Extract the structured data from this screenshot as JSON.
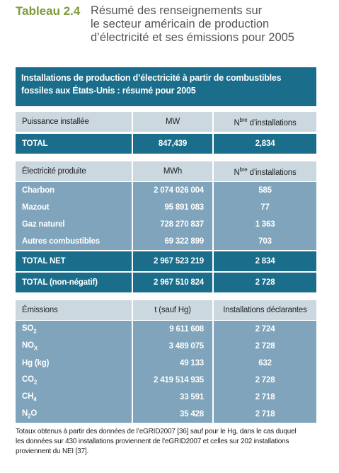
{
  "title": {
    "label": "Tableau 2.4",
    "lines": [
      "Résumé des renseignements sur",
      "le secteur américain de production",
      "d’électricité et ses émissions pour 2005"
    ]
  },
  "table": {
    "caption": [
      "Installations de production d’électricité à partir de combustibles",
      "fossiles aux États-Unis : résumé pour 2005"
    ],
    "sections": [
      {
        "header": [
          [
            "Puissance installée"
          ],
          [
            "MW"
          ],
          [
            "N",
            "bre",
            " d’installations"
          ]
        ],
        "rows": [],
        "totals": [
          [
            [
              "TOTAL"
            ],
            [
              "847,439"
            ],
            [
              "2,834"
            ]
          ]
        ]
      },
      {
        "header": [
          [
            "Électricité produite"
          ],
          [
            "MWh"
          ],
          [
            "N",
            "bre",
            " d’installations"
          ]
        ],
        "rows": [
          [
            [
              "Charbon"
            ],
            [
              "2 074 026 004"
            ],
            [
              "585"
            ]
          ],
          [
            [
              "Mazout"
            ],
            [
              "95 891 083"
            ],
            [
              "77"
            ]
          ],
          [
            [
              "Gaz naturel"
            ],
            [
              "728 270 837"
            ],
            [
              "1 363"
            ]
          ],
          [
            [
              "Autres combustibles"
            ],
            [
              "69 322 899"
            ],
            [
              "703"
            ]
          ]
        ],
        "totals": [
          [
            [
              "TOTAL NET"
            ],
            [
              "2 967 523 219"
            ],
            [
              "2 834"
            ]
          ],
          [
            [
              "TOTAL (non-négatif)"
            ],
            [
              "2 967 510 824"
            ],
            [
              "2 728"
            ]
          ]
        ]
      },
      {
        "header": [
          [
            "Émissions"
          ],
          [
            "t (sauf Hg)"
          ],
          [
            "Installations déclarantes"
          ]
        ],
        "rows": [
          [
            [
              "SO",
              "2"
            ],
            [
              "9 611 608"
            ],
            [
              "2 724"
            ]
          ],
          [
            [
              "NO",
              "X"
            ],
            [
              "3 489 075"
            ],
            [
              "2 728"
            ]
          ],
          [
            [
              "Hg (kg)"
            ],
            [
              "49 133"
            ],
            [
              "632"
            ]
          ],
          [
            [
              "CO",
              "2"
            ],
            [
              "2 419 514 935"
            ],
            [
              "2 728"
            ]
          ],
          [
            [
              "CH",
              "4"
            ],
            [
              "33 591"
            ],
            [
              "2 718"
            ]
          ],
          [
            [
              "N",
              "2",
              "O"
            ],
            [
              "35 428"
            ],
            [
              "2 718"
            ]
          ]
        ],
        "totals": []
      }
    ]
  },
  "footnote": [
    "Totaux obtenus à partir des données de l’eGRID2007 [36] sauf pour le Hg, dans le cas duquel",
    "les données sur 430 installations proviennent de l’eGRID2007 et celles sur 202 installations",
    "proviennent du NEI [37]."
  ]
}
